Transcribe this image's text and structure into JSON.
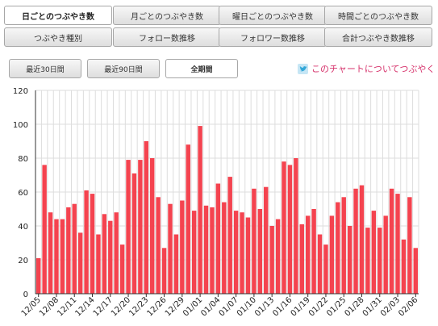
{
  "tabs_row1": [
    {
      "label": "日ごとのつぶやき数",
      "active": true
    },
    {
      "label": "月ごとのつぶやき数",
      "active": false
    },
    {
      "label": "曜日ごとのつぶやき数",
      "active": false
    },
    {
      "label": "時間ごとのつぶやき数",
      "active": false
    }
  ],
  "tabs_row2": [
    {
      "label": "つぶやき種別",
      "active": false
    },
    {
      "label": "フォロー数推移",
      "active": false
    },
    {
      "label": "フォロワー数推移",
      "active": false
    },
    {
      "label": "合計つぶやき数推移",
      "active": false
    }
  ],
  "range_buttons": [
    {
      "label": "最近30日間",
      "active": false
    },
    {
      "label": "最近90日間",
      "active": false
    },
    {
      "label": "全期間",
      "active": true
    }
  ],
  "tweet_link": {
    "label": "このチャートについてつぶやく",
    "icon": "twitter-bird-icon"
  },
  "colors": {
    "bar": "#f4434f",
    "grid": "#dddddd",
    "axis": "#333333",
    "link": "#d6336c"
  },
  "chart_data": {
    "type": "bar",
    "ylim": [
      0,
      120
    ],
    "yticks": [
      0,
      20,
      40,
      60,
      80,
      100,
      120
    ],
    "grid": true,
    "x_tick_labels": [
      "12/05",
      "12/08",
      "12/11",
      "12/14",
      "12/17",
      "12/20",
      "12/23",
      "12/26",
      "12/29",
      "01/01",
      "01/04",
      "01/07",
      "01/10",
      "01/13",
      "01/16",
      "01/19",
      "01/22",
      "01/25",
      "01/28",
      "01/31",
      "02/03",
      "02/06"
    ],
    "categories": [
      "12/05",
      "12/06",
      "12/07",
      "12/08",
      "12/09",
      "12/10",
      "12/11",
      "12/12",
      "12/13",
      "12/14",
      "12/15",
      "12/16",
      "12/17",
      "12/18",
      "12/19",
      "12/20",
      "12/21",
      "12/22",
      "12/23",
      "12/24",
      "12/25",
      "12/26",
      "12/27",
      "12/28",
      "12/29",
      "12/30",
      "12/31",
      "01/01",
      "01/02",
      "01/03",
      "01/04",
      "01/05",
      "01/06",
      "01/07",
      "01/08",
      "01/09",
      "01/10",
      "01/11",
      "01/12",
      "01/13",
      "01/14",
      "01/15",
      "01/16",
      "01/17",
      "01/18",
      "01/19",
      "01/20",
      "01/21",
      "01/22",
      "01/23",
      "01/24",
      "01/25",
      "01/26",
      "01/27",
      "01/28",
      "01/29",
      "01/30",
      "01/31",
      "02/01",
      "02/02",
      "02/03",
      "02/04",
      "02/05",
      "02/06"
    ],
    "values": [
      21,
      76,
      48,
      44,
      44,
      51,
      53,
      36,
      61,
      59,
      35,
      47,
      43,
      48,
      29,
      79,
      71,
      79,
      90,
      80,
      57,
      27,
      53,
      35,
      55,
      88,
      49,
      99,
      52,
      51,
      65,
      54,
      69,
      49,
      48,
      45,
      62,
      50,
      63,
      40,
      44,
      78,
      76,
      80,
      41,
      46,
      50,
      35,
      29,
      46,
      54,
      57,
      40,
      62,
      64,
      39,
      49,
      39,
      46,
      62,
      59,
      32,
      57,
      27
    ]
  }
}
